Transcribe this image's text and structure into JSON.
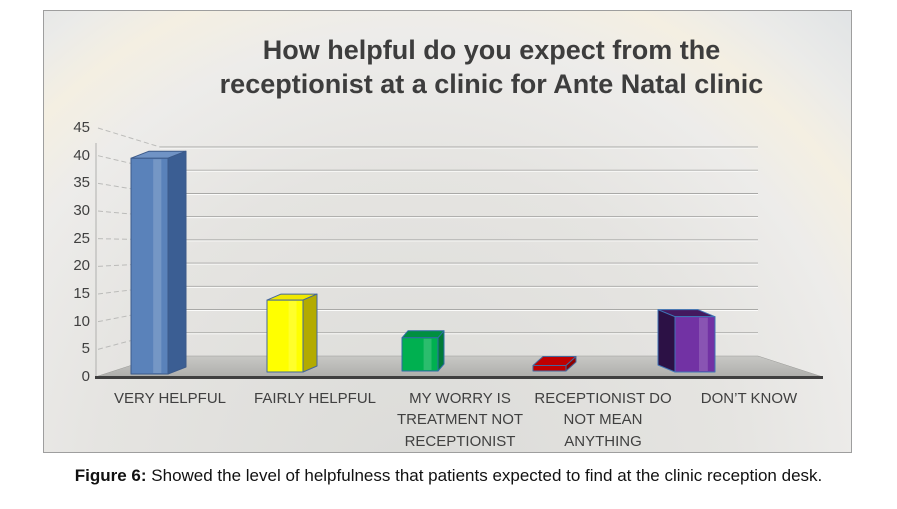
{
  "figure": {
    "caption_label": "Figure 6:",
    "caption_text": " Showed the level of helpfulness that patients expected to find at the clinic reception desk."
  },
  "chart_data": {
    "type": "bar",
    "projection": "3d-perspective",
    "title": "How helpful do you expect from the receptionist at a clinic for Ante Natal clinic",
    "title_lines": [
      "How helpful do you expect from the",
      "receptionist at a clinic for Ante Natal clinic"
    ],
    "categories": [
      "VERY HELPFUL",
      "FAIRLY HELPFUL",
      "MY WORRY IS TREATMENT NOT RECEPTIONIST",
      "RECEPTIONIST DO NOT MEAN ANYTHING",
      "DON’T KNOW"
    ],
    "values": [
      39,
      13,
      6,
      1,
      10
    ],
    "xlabel": "",
    "ylabel": "",
    "ylim": [
      0,
      45
    ],
    "ytick_step": 5,
    "yticks": [
      45,
      40,
      35,
      30,
      25,
      20,
      15,
      10,
      5,
      0
    ],
    "grid": true,
    "legend": false,
    "bar_colors": [
      {
        "name": "blue",
        "front": "#5a82ba",
        "side": "#3b5e93",
        "top": "#7093c5",
        "stroke": "#3c5a8a"
      },
      {
        "name": "yellow",
        "front": "#ffff00",
        "side": "#b3ab00",
        "top": "#f0e800",
        "stroke": "#44679c"
      },
      {
        "name": "green",
        "front": "#00b050",
        "side": "#007a38",
        "top": "#008f41",
        "stroke": "#2e6da4"
      },
      {
        "name": "red",
        "front": "#c00000",
        "side": "#8f0000",
        "top": "#c00000",
        "stroke": "#44679c"
      },
      {
        "name": "purple",
        "front": "#7232a4",
        "side": "#2c1145",
        "top": "#44195f",
        "stroke": "#3f74b5"
      }
    ],
    "wall_color": "#e7e6e4",
    "floor_color_near": "#aeaeab",
    "floor_color_far": "#c8c8c5",
    "axis_line_color": "#3f3f3f",
    "gridline_color": "#a9a9a7",
    "text_color": "#404040",
    "title_color": "#3d3d3d"
  }
}
